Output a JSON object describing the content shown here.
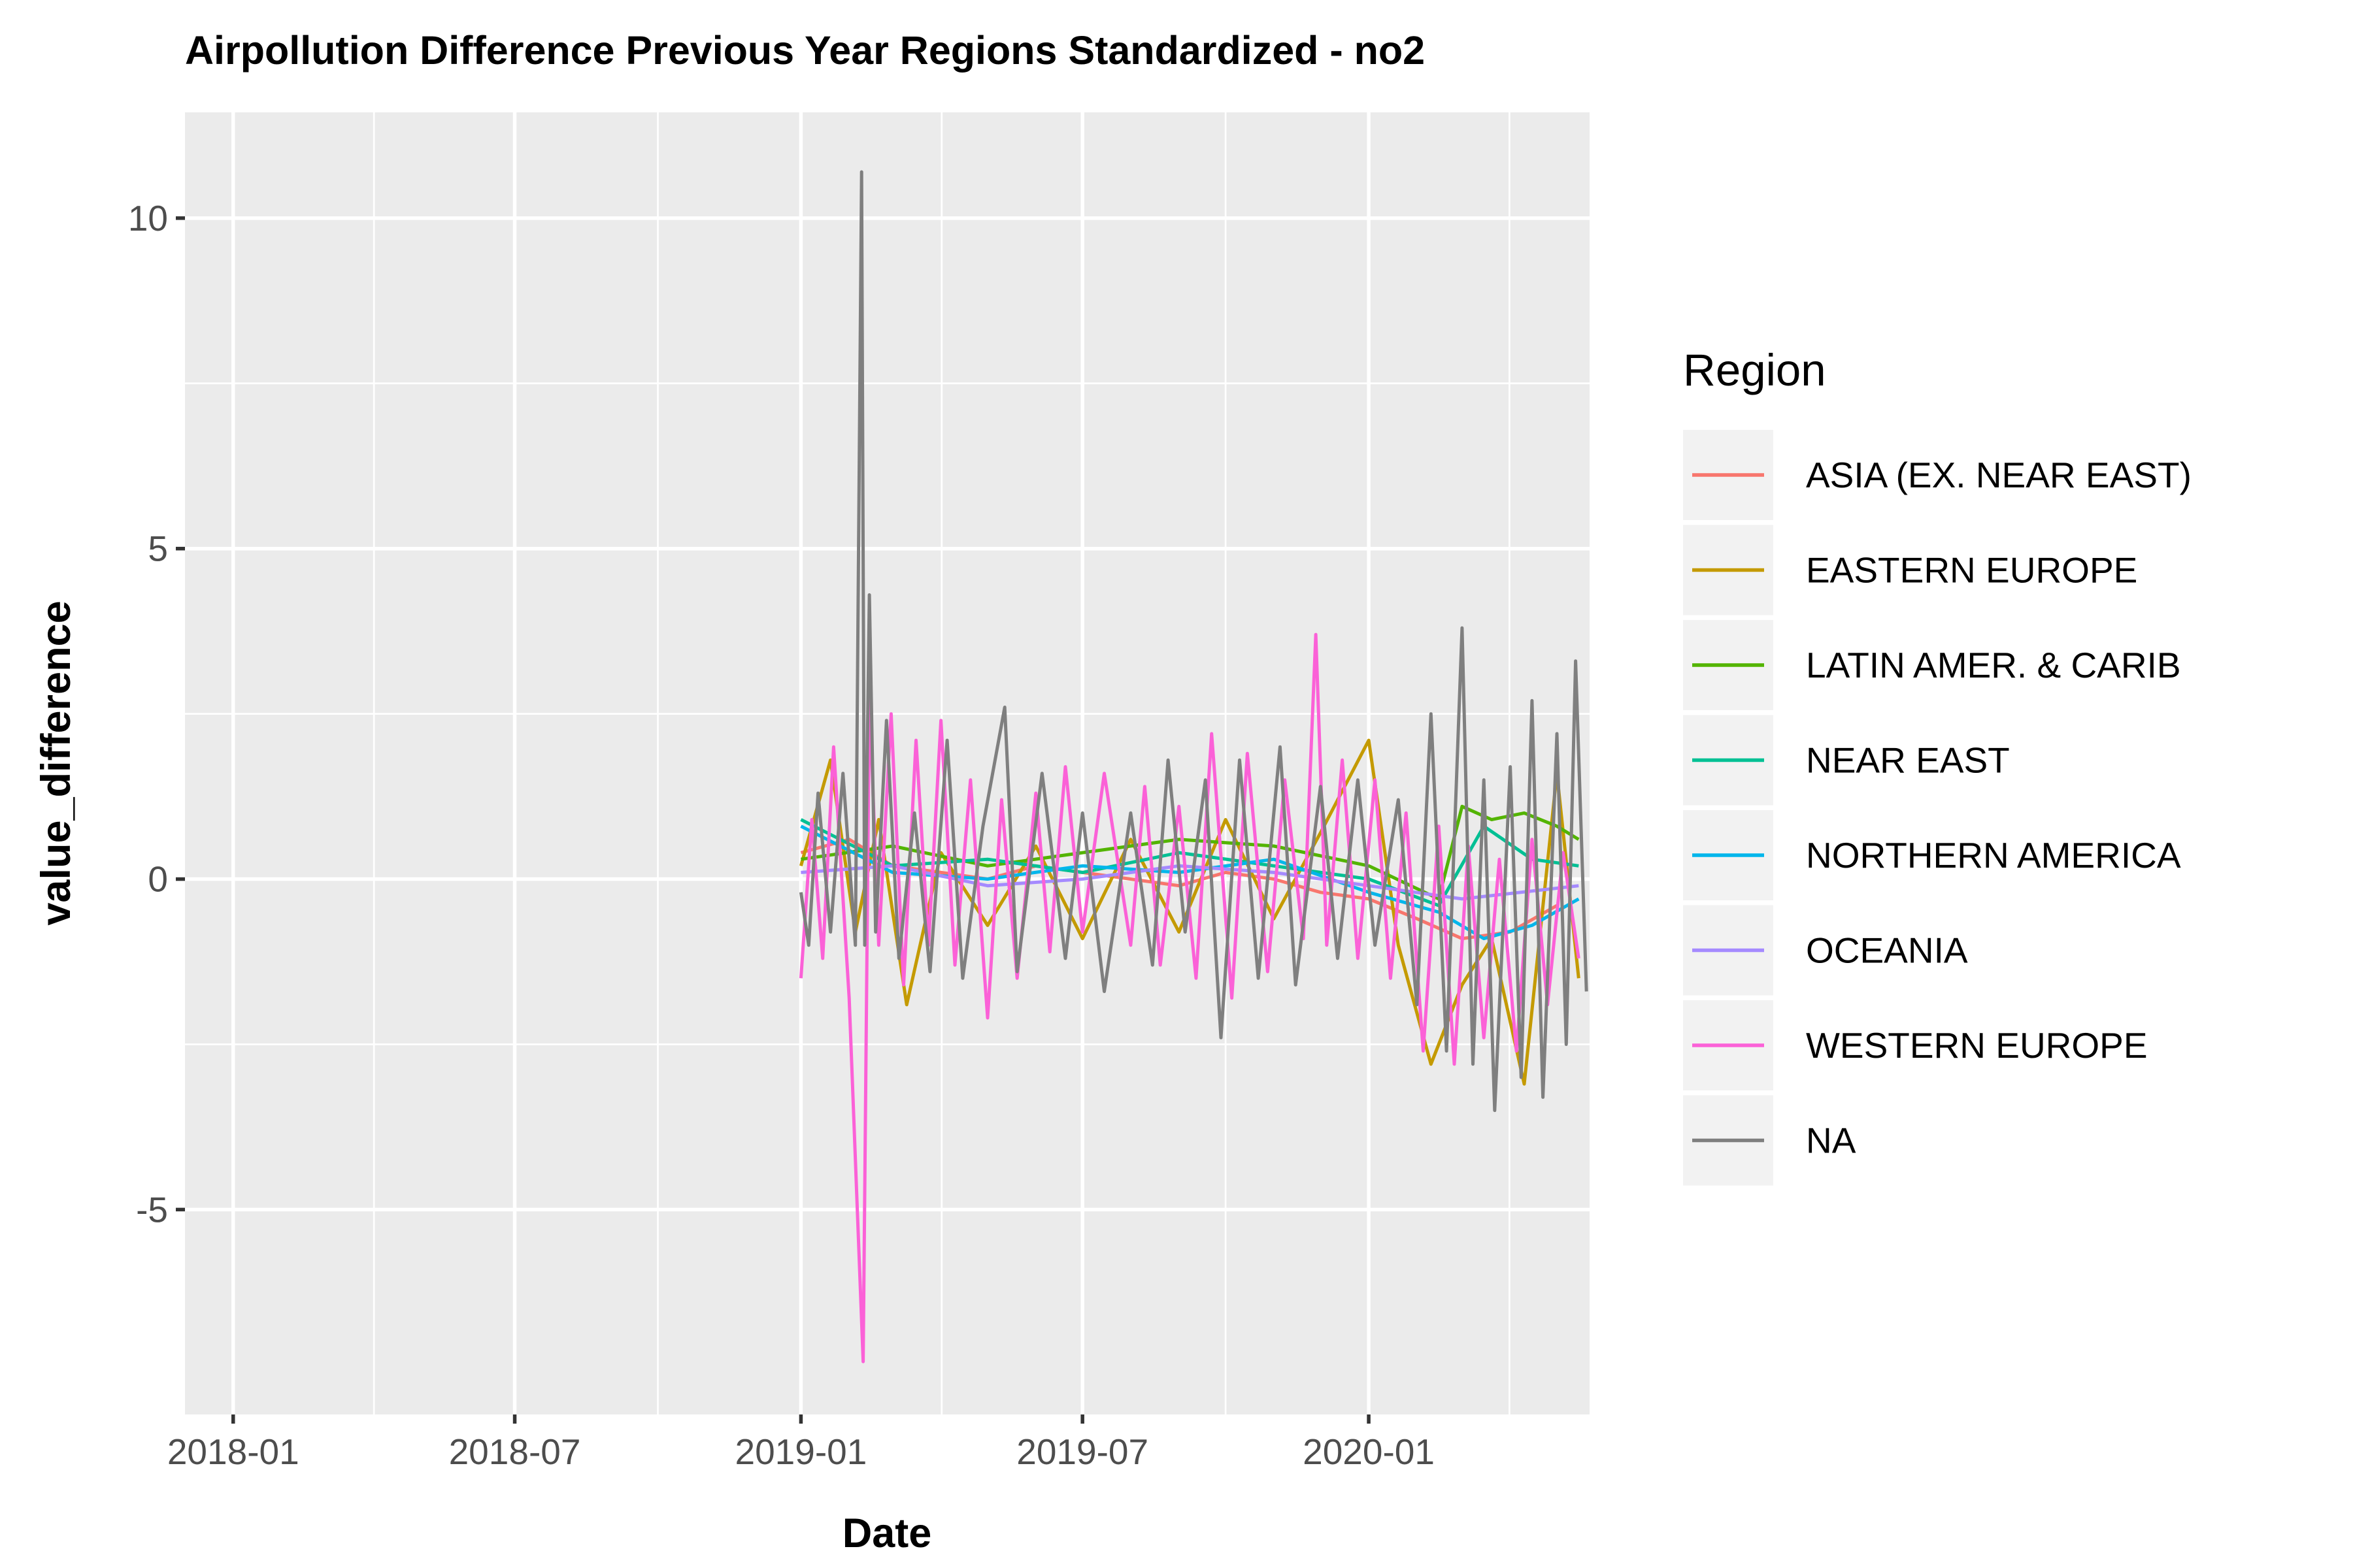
{
  "chart_data": {
    "type": "line",
    "title": "Airpollution Difference Previous Year Regions Standardized - no2",
    "xlabel": "Date",
    "ylabel": "value_difference",
    "x_range": [
      "2017-12-01",
      "2020-05-22"
    ],
    "ylim": [
      -8.1,
      11.6
    ],
    "x_ticks": [
      "2018-01",
      "2018-07",
      "2019-01",
      "2019-07",
      "2020-01"
    ],
    "y_ticks": [
      "-5",
      "0",
      "5",
      "10"
    ],
    "grid": true,
    "legend_title": "Region",
    "legend_position": "right",
    "series": [
      {
        "name": "ASIA (EX. NEAR EAST)",
        "color": "#F8766D",
        "points": [
          [
            "2019-01-01",
            0.4
          ],
          [
            "2019-02-01",
            0.6
          ],
          [
            "2019-03-01",
            0.2
          ],
          [
            "2019-04-01",
            0.1
          ],
          [
            "2019-05-01",
            0.0
          ],
          [
            "2019-06-01",
            0.2
          ],
          [
            "2019-07-01",
            0.1
          ],
          [
            "2019-08-01",
            0.0
          ],
          [
            "2019-09-01",
            -0.1
          ],
          [
            "2019-10-01",
            0.1
          ],
          [
            "2019-11-01",
            0.0
          ],
          [
            "2019-12-01",
            -0.2
          ],
          [
            "2020-01-01",
            -0.3
          ],
          [
            "2020-02-01",
            -0.6
          ],
          [
            "2020-03-01",
            -0.9
          ],
          [
            "2020-04-01",
            -0.8
          ],
          [
            "2020-05-01",
            -0.4
          ]
        ]
      },
      {
        "name": "EASTERN EUROPE",
        "color": "#C49A00",
        "points": [
          [
            "2019-01-01",
            0.2
          ],
          [
            "2019-01-20",
            1.8
          ],
          [
            "2019-02-05",
            -0.8
          ],
          [
            "2019-02-20",
            0.9
          ],
          [
            "2019-03-10",
            -1.9
          ],
          [
            "2019-04-01",
            0.4
          ],
          [
            "2019-05-01",
            -0.7
          ],
          [
            "2019-06-01",
            0.5
          ],
          [
            "2019-07-01",
            -0.9
          ],
          [
            "2019-08-01",
            0.6
          ],
          [
            "2019-09-01",
            -0.8
          ],
          [
            "2019-10-01",
            0.9
          ],
          [
            "2019-11-01",
            -0.6
          ],
          [
            "2019-12-01",
            0.7
          ],
          [
            "2020-01-01",
            2.1
          ],
          [
            "2020-01-20",
            -1.0
          ],
          [
            "2020-02-10",
            -2.8
          ],
          [
            "2020-03-01",
            -1.6
          ],
          [
            "2020-03-20",
            -0.9
          ],
          [
            "2020-04-10",
            -3.1
          ],
          [
            "2020-05-01",
            1.6
          ],
          [
            "2020-05-15",
            -1.5
          ]
        ]
      },
      {
        "name": "LATIN AMER. & CARIB",
        "color": "#53B400",
        "points": [
          [
            "2019-01-01",
            0.3
          ],
          [
            "2019-03-01",
            0.5
          ],
          [
            "2019-05-01",
            0.2
          ],
          [
            "2019-07-01",
            0.4
          ],
          [
            "2019-09-01",
            0.6
          ],
          [
            "2019-11-01",
            0.5
          ],
          [
            "2020-01-01",
            0.2
          ],
          [
            "2020-02-15",
            -0.3
          ],
          [
            "2020-03-01",
            1.1
          ],
          [
            "2020-03-20",
            0.9
          ],
          [
            "2020-04-10",
            1.0
          ],
          [
            "2020-05-01",
            0.8
          ],
          [
            "2020-05-15",
            0.6
          ]
        ]
      },
      {
        "name": "NEAR EAST",
        "color": "#00C094",
        "points": [
          [
            "2019-01-01",
            0.9
          ],
          [
            "2019-03-01",
            0.2
          ],
          [
            "2019-05-01",
            0.3
          ],
          [
            "2019-07-01",
            0.1
          ],
          [
            "2019-09-01",
            0.4
          ],
          [
            "2019-11-01",
            0.2
          ],
          [
            "2020-01-01",
            0.0
          ],
          [
            "2020-02-15",
            -0.4
          ],
          [
            "2020-03-15",
            0.8
          ],
          [
            "2020-04-15",
            0.3
          ],
          [
            "2020-05-15",
            0.2
          ]
        ]
      },
      {
        "name": "NORTHERN AMERICA",
        "color": "#00B6EB",
        "points": [
          [
            "2019-01-01",
            0.8
          ],
          [
            "2019-03-01",
            0.1
          ],
          [
            "2019-05-01",
            0.0
          ],
          [
            "2019-07-01",
            0.2
          ],
          [
            "2019-09-01",
            0.1
          ],
          [
            "2019-11-01",
            0.3
          ],
          [
            "2020-01-01",
            -0.2
          ],
          [
            "2020-02-15",
            -0.5
          ],
          [
            "2020-03-15",
            -0.9
          ],
          [
            "2020-04-15",
            -0.7
          ],
          [
            "2020-05-15",
            -0.3
          ]
        ]
      },
      {
        "name": "OCEANIA",
        "color": "#A58AFF",
        "points": [
          [
            "2019-01-01",
            0.1
          ],
          [
            "2019-03-01",
            0.2
          ],
          [
            "2019-05-01",
            -0.1
          ],
          [
            "2019-07-01",
            0.0
          ],
          [
            "2019-09-01",
            0.2
          ],
          [
            "2019-11-01",
            0.1
          ],
          [
            "2020-01-01",
            -0.1
          ],
          [
            "2020-03-01",
            -0.3
          ],
          [
            "2020-05-15",
            -0.1
          ]
        ]
      },
      {
        "name": "WESTERN EUROPE",
        "color": "#FB61D7",
        "points": [
          [
            "2019-01-01",
            -1.5
          ],
          [
            "2019-01-08",
            0.9
          ],
          [
            "2019-01-15",
            -1.2
          ],
          [
            "2019-01-22",
            2.0
          ],
          [
            "2019-02-01",
            -1.8
          ],
          [
            "2019-02-10",
            -7.3
          ],
          [
            "2019-02-14",
            2.8
          ],
          [
            "2019-02-20",
            -1.0
          ],
          [
            "2019-02-28",
            2.5
          ],
          [
            "2019-03-08",
            -1.6
          ],
          [
            "2019-03-16",
            2.1
          ],
          [
            "2019-03-24",
            -1.0
          ],
          [
            "2019-04-01",
            2.4
          ],
          [
            "2019-04-10",
            -1.3
          ],
          [
            "2019-04-20",
            1.5
          ],
          [
            "2019-05-01",
            -2.1
          ],
          [
            "2019-05-10",
            1.2
          ],
          [
            "2019-05-20",
            -1.5
          ],
          [
            "2019-06-01",
            1.3
          ],
          [
            "2019-06-10",
            -1.1
          ],
          [
            "2019-06-20",
            1.7
          ],
          [
            "2019-07-01",
            -0.8
          ],
          [
            "2019-07-15",
            1.6
          ],
          [
            "2019-08-01",
            -1.0
          ],
          [
            "2019-08-10",
            1.4
          ],
          [
            "2019-08-20",
            -1.3
          ],
          [
            "2019-09-01",
            1.1
          ],
          [
            "2019-09-12",
            -1.5
          ],
          [
            "2019-09-22",
            2.2
          ],
          [
            "2019-10-05",
            -1.8
          ],
          [
            "2019-10-15",
            1.9
          ],
          [
            "2019-10-28",
            -1.4
          ],
          [
            "2019-11-08",
            1.5
          ],
          [
            "2019-11-20",
            -0.9
          ],
          [
            "2019-11-28",
            3.7
          ],
          [
            "2019-12-05",
            -1.0
          ],
          [
            "2019-12-15",
            1.8
          ],
          [
            "2019-12-25",
            -1.2
          ],
          [
            "2020-01-05",
            1.5
          ],
          [
            "2020-01-15",
            -1.5
          ],
          [
            "2020-01-25",
            1.0
          ],
          [
            "2020-02-05",
            -2.6
          ],
          [
            "2020-02-15",
            0.8
          ],
          [
            "2020-02-25",
            -2.8
          ],
          [
            "2020-03-05",
            0.5
          ],
          [
            "2020-03-15",
            -2.4
          ],
          [
            "2020-03-25",
            0.3
          ],
          [
            "2020-04-05",
            -2.6
          ],
          [
            "2020-04-15",
            0.6
          ],
          [
            "2020-04-25",
            -1.9
          ],
          [
            "2020-05-05",
            0.4
          ],
          [
            "2020-05-15",
            -1.2
          ]
        ]
      },
      {
        "name": "NA",
        "color": "#7F7F7F",
        "points": [
          [
            "2019-01-01",
            -0.2
          ],
          [
            "2019-01-06",
            -1.0
          ],
          [
            "2019-01-12",
            1.3
          ],
          [
            "2019-01-20",
            -0.8
          ],
          [
            "2019-01-28",
            1.6
          ],
          [
            "2019-02-05",
            -1.0
          ],
          [
            "2019-02-09",
            10.7
          ],
          [
            "2019-02-11",
            -1.0
          ],
          [
            "2019-02-14",
            4.3
          ],
          [
            "2019-02-18",
            -0.8
          ],
          [
            "2019-02-25",
            2.4
          ],
          [
            "2019-03-05",
            -1.2
          ],
          [
            "2019-03-15",
            1.0
          ],
          [
            "2019-03-25",
            -1.4
          ],
          [
            "2019-04-05",
            2.1
          ],
          [
            "2019-04-15",
            -1.5
          ],
          [
            "2019-04-28",
            0.8
          ],
          [
            "2019-05-12",
            2.6
          ],
          [
            "2019-05-20",
            -1.4
          ],
          [
            "2019-06-05",
            1.6
          ],
          [
            "2019-06-20",
            -1.2
          ],
          [
            "2019-07-01",
            1.0
          ],
          [
            "2019-07-15",
            -1.7
          ],
          [
            "2019-08-01",
            1.0
          ],
          [
            "2019-08-15",
            -1.3
          ],
          [
            "2019-08-25",
            1.8
          ],
          [
            "2019-09-05",
            -0.8
          ],
          [
            "2019-09-18",
            1.5
          ],
          [
            "2019-09-28",
            -2.4
          ],
          [
            "2019-10-10",
            1.8
          ],
          [
            "2019-10-22",
            -1.5
          ],
          [
            "2019-11-05",
            2.0
          ],
          [
            "2019-11-15",
            -1.6
          ],
          [
            "2019-12-01",
            1.4
          ],
          [
            "2019-12-12",
            -1.2
          ],
          [
            "2019-12-25",
            1.5
          ],
          [
            "2020-01-05",
            -1.0
          ],
          [
            "2020-01-20",
            1.2
          ],
          [
            "2020-02-01",
            -1.9
          ],
          [
            "2020-02-10",
            2.5
          ],
          [
            "2020-02-20",
            -2.6
          ],
          [
            "2020-03-01",
            3.8
          ],
          [
            "2020-03-08",
            -2.8
          ],
          [
            "2020-03-15",
            1.5
          ],
          [
            "2020-03-22",
            -3.5
          ],
          [
            "2020-04-01",
            1.7
          ],
          [
            "2020-04-08",
            -3.0
          ],
          [
            "2020-04-15",
            2.7
          ],
          [
            "2020-04-22",
            -3.3
          ],
          [
            "2020-05-01",
            2.2
          ],
          [
            "2020-05-07",
            -2.5
          ],
          [
            "2020-05-13",
            3.3
          ],
          [
            "2020-05-20",
            -1.7
          ]
        ]
      }
    ]
  }
}
